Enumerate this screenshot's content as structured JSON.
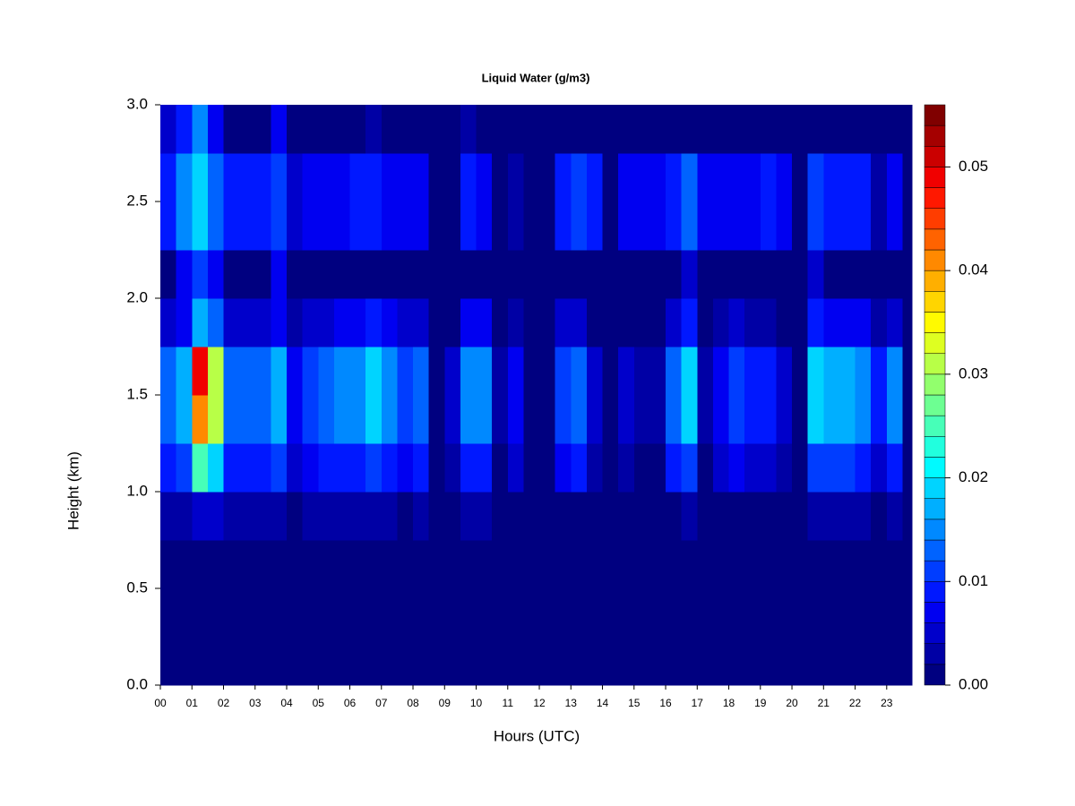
{
  "chart_data": {
    "type": "heatmap",
    "title": "Liquid Water (g/m3)",
    "x_label": "Hours (UTC)",
    "y_label": "Height (km)",
    "colormap": "jet",
    "levels": 28,
    "zlim": [
      0,
      0.056
    ],
    "zticks": [
      {
        "value": 0,
        "label": "0.00"
      },
      {
        "value": 0.01,
        "label": "0.01"
      },
      {
        "value": 0.02,
        "label": "0.02"
      },
      {
        "value": 0.03,
        "label": "0.03"
      },
      {
        "value": 0.04,
        "label": "0.04"
      },
      {
        "value": 0.05,
        "label": "0.05"
      }
    ],
    "xlim": [
      0,
      23.8
    ],
    "xticks": [
      {
        "value": 0,
        "label": "00"
      },
      {
        "value": 1,
        "label": "01"
      },
      {
        "value": 2,
        "label": "02"
      },
      {
        "value": 3,
        "label": "03"
      },
      {
        "value": 4,
        "label": "04"
      },
      {
        "value": 5,
        "label": "05"
      },
      {
        "value": 6,
        "label": "06"
      },
      {
        "value": 7,
        "label": "07"
      },
      {
        "value": 8,
        "label": "08"
      },
      {
        "value": 9,
        "label": "09"
      },
      {
        "value": 10,
        "label": "10"
      },
      {
        "value": 11,
        "label": "11"
      },
      {
        "value": 12,
        "label": "12"
      },
      {
        "value": 13,
        "label": "13"
      },
      {
        "value": 14,
        "label": "14"
      },
      {
        "value": 15,
        "label": "15"
      },
      {
        "value": 16,
        "label": "16"
      },
      {
        "value": 17,
        "label": "17"
      },
      {
        "value": 18,
        "label": "18"
      },
      {
        "value": 19,
        "label": "19"
      },
      {
        "value": 20,
        "label": "20"
      },
      {
        "value": 21,
        "label": "21"
      },
      {
        "value": 22,
        "label": "22"
      },
      {
        "value": 23,
        "label": "23"
      }
    ],
    "ylim": [
      0,
      3
    ],
    "yticks": [
      {
        "value": 0,
        "label": "0.0"
      },
      {
        "value": 0.5,
        "label": "0.5"
      },
      {
        "value": 1,
        "label": "1.0"
      },
      {
        "value": 1.5,
        "label": "1.5"
      },
      {
        "value": 2,
        "label": "2.0"
      },
      {
        "value": 2.5,
        "label": "2.5"
      },
      {
        "value": 3,
        "label": "3.0"
      }
    ],
    "xbins": [
      0,
      0.5,
      1,
      1.5,
      2,
      2.5,
      3,
      3.5,
      4,
      4.5,
      5,
      5.5,
      6,
      6.5,
      7,
      7.5,
      8,
      8.5,
      9,
      9.5,
      10,
      10.5,
      11,
      11.5,
      12,
      12.5,
      13,
      13.5,
      14,
      14.5,
      15,
      15.5,
      16,
      16.5,
      17,
      17.5,
      18,
      18.5,
      19,
      19.5,
      20,
      20.5,
      21,
      21.5,
      22,
      22.5,
      23,
      23.5,
      23.8
    ],
    "ybins": [
      0,
      0.25,
      0.5,
      0.75,
      1,
      1.25,
      1.5,
      1.75,
      2,
      2.25,
      2.5,
      2.75,
      3
    ],
    "values": [
      [
        0,
        0,
        0,
        0,
        0,
        0,
        0,
        0,
        0,
        0,
        0,
        0,
        0,
        0,
        0,
        0,
        0,
        0,
        0,
        0,
        0,
        0,
        0,
        0,
        0,
        0,
        0,
        0,
        0,
        0,
        0,
        0,
        0,
        0,
        0,
        0,
        0,
        0,
        0,
        0,
        0,
        0,
        0,
        0,
        0,
        0,
        0,
        0
      ],
      [
        0,
        0,
        0,
        0,
        0,
        0,
        0,
        0,
        0,
        0,
        0,
        0,
        0,
        0,
        0,
        0,
        0,
        0,
        0,
        0,
        0,
        0,
        0,
        0,
        0,
        0,
        0,
        0,
        0,
        0,
        0,
        0,
        0,
        0,
        0,
        0,
        0,
        0,
        0,
        0,
        0,
        0,
        0,
        0,
        0,
        0,
        0,
        0
      ],
      [
        0,
        0,
        0,
        0,
        0,
        0,
        0,
        0,
        0,
        0,
        0,
        0,
        0,
        0,
        0,
        0,
        0,
        0,
        0,
        0,
        0,
        0,
        0,
        0,
        0,
        0,
        0,
        0,
        0,
        0,
        0,
        0,
        0,
        0,
        0,
        0,
        0,
        0,
        0,
        0,
        0,
        0,
        0,
        0,
        0,
        0,
        0,
        0
      ],
      [
        0.002,
        0.002,
        0.004,
        0.004,
        0.002,
        0.002,
        0.002,
        0.002,
        0,
        0.002,
        0.002,
        0.002,
        0.002,
        0.002,
        0.002,
        0,
        0.002,
        0,
        0,
        0.002,
        0.002,
        0,
        0,
        0,
        0,
        0,
        0,
        0,
        0,
        0,
        0,
        0,
        0,
        0.002,
        0,
        0,
        0,
        0,
        0,
        0,
        0,
        0.002,
        0.002,
        0.002,
        0.002,
        0,
        0.002,
        0
      ],
      [
        0.008,
        0.01,
        0.024,
        0.018,
        0.008,
        0.008,
        0.008,
        0.01,
        0.004,
        0.006,
        0.008,
        0.008,
        0.008,
        0.01,
        0.008,
        0.006,
        0.008,
        0,
        0.002,
        0.008,
        0.008,
        0,
        0.004,
        0,
        0,
        0.006,
        0.008,
        0.002,
        0,
        0.002,
        0,
        0,
        0.008,
        0.01,
        0,
        0.004,
        0.006,
        0.004,
        0.004,
        0.002,
        0,
        0.01,
        0.01,
        0.01,
        0.008,
        0.004,
        0.008,
        0
      ],
      [
        0.012,
        0.016,
        0.04,
        0.03,
        0.012,
        0.012,
        0.012,
        0.016,
        0.006,
        0.01,
        0.012,
        0.014,
        0.014,
        0.018,
        0.014,
        0.01,
        0.012,
        0,
        0.004,
        0.014,
        0.014,
        0.002,
        0.006,
        0,
        0,
        0.01,
        0.012,
        0.004,
        0,
        0.004,
        0.002,
        0.002,
        0.012,
        0.018,
        0.002,
        0.006,
        0.01,
        0.008,
        0.008,
        0.004,
        0,
        0.018,
        0.016,
        0.016,
        0.014,
        0.008,
        0.014,
        0
      ],
      [
        0.012,
        0.016,
        0.048,
        0.03,
        0.012,
        0.012,
        0.012,
        0.016,
        0.006,
        0.01,
        0.012,
        0.014,
        0.014,
        0.018,
        0.014,
        0.01,
        0.012,
        0,
        0.004,
        0.014,
        0.014,
        0.002,
        0.006,
        0,
        0,
        0.01,
        0.012,
        0.004,
        0,
        0.004,
        0.002,
        0.002,
        0.012,
        0.018,
        0.002,
        0.006,
        0.01,
        0.008,
        0.008,
        0.004,
        0,
        0.018,
        0.016,
        0.016,
        0.014,
        0.008,
        0.014,
        0
      ],
      [
        0.004,
        0.006,
        0.016,
        0.012,
        0.004,
        0.004,
        0.004,
        0.006,
        0.002,
        0.004,
        0.004,
        0.006,
        0.006,
        0.008,
        0.006,
        0.004,
        0.004,
        0,
        0,
        0.006,
        0.006,
        0,
        0.002,
        0,
        0,
        0.004,
        0.004,
        0,
        0,
        0,
        0,
        0,
        0.004,
        0.008,
        0,
        0.002,
        0.004,
        0.002,
        0.002,
        0,
        0,
        0.008,
        0.006,
        0.006,
        0.006,
        0.002,
        0.004,
        0
      ],
      [
        0,
        0.006,
        0.01,
        0.006,
        0,
        0,
        0,
        0.006,
        0,
        0,
        0,
        0,
        0,
        0,
        0,
        0,
        0,
        0,
        0,
        0,
        0,
        0,
        0,
        0,
        0,
        0,
        0,
        0,
        0,
        0,
        0,
        0,
        0,
        0.004,
        0,
        0,
        0,
        0,
        0,
        0,
        0,
        0.004,
        0,
        0,
        0,
        0,
        0,
        0
      ],
      [
        0.008,
        0.014,
        0.018,
        0.012,
        0.008,
        0.008,
        0.008,
        0.01,
        0.004,
        0.006,
        0.006,
        0.006,
        0.008,
        0.008,
        0.006,
        0.006,
        0.006,
        0,
        0,
        0.008,
        0.006,
        0,
        0.002,
        0,
        0,
        0.008,
        0.01,
        0.008,
        0,
        0.006,
        0.006,
        0.006,
        0.008,
        0.012,
        0.006,
        0.006,
        0.006,
        0.006,
        0.008,
        0.006,
        0,
        0.01,
        0.008,
        0.008,
        0.008,
        0.002,
        0.006,
        0
      ],
      [
        0.008,
        0.014,
        0.018,
        0.012,
        0.008,
        0.008,
        0.008,
        0.01,
        0.004,
        0.006,
        0.006,
        0.006,
        0.008,
        0.008,
        0.006,
        0.006,
        0.006,
        0,
        0,
        0.008,
        0.006,
        0,
        0.002,
        0,
        0,
        0.008,
        0.01,
        0.008,
        0,
        0.006,
        0.006,
        0.006,
        0.008,
        0.012,
        0.006,
        0.006,
        0.006,
        0.006,
        0.008,
        0.006,
        0,
        0.01,
        0.008,
        0.008,
        0.008,
        0.002,
        0.006,
        0
      ],
      [
        0.004,
        0.008,
        0.014,
        0.006,
        0,
        0,
        0,
        0.006,
        0,
        0,
        0,
        0,
        0,
        0.002,
        0,
        0,
        0,
        0,
        0,
        0.002,
        0,
        0,
        0,
        0,
        0,
        0,
        0,
        0,
        0,
        0,
        0,
        0,
        0,
        0,
        0,
        0,
        0,
        0,
        0,
        0,
        0,
        0,
        0,
        0,
        0,
        0,
        0,
        0
      ]
    ]
  }
}
